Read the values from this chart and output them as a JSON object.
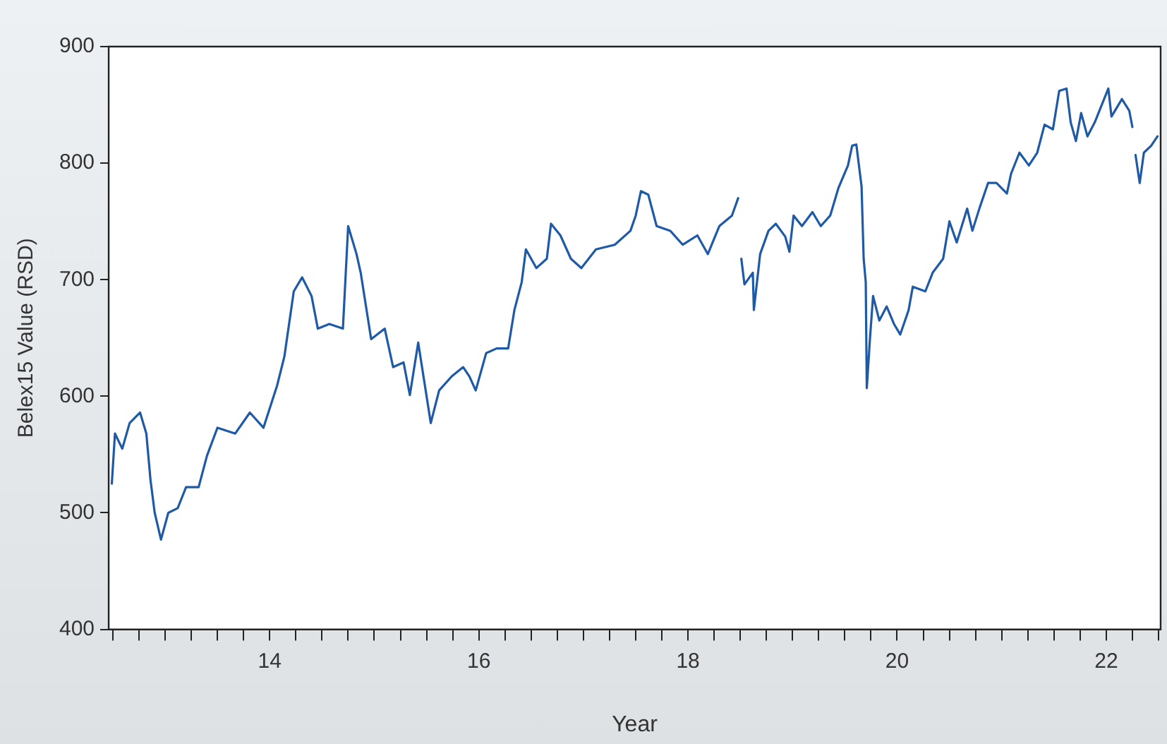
{
  "chart_data": {
    "type": "line",
    "xlabel": "Year",
    "ylabel": "Belex15 Value (RSD)",
    "legend": false,
    "grid": false,
    "marker": "none",
    "line_style": "solid",
    "xlim": [
      2012.46,
      2022.52
    ],
    "ylim": [
      400,
      900
    ],
    "yticks": [
      400,
      500,
      600,
      700,
      800,
      900
    ],
    "xticks": [
      {
        "value": 2012.5,
        "label": null
      },
      {
        "value": 2012.75,
        "label": null
      },
      {
        "value": 2013,
        "label": null
      },
      {
        "value": 2013.25,
        "label": null
      },
      {
        "value": 2013.5,
        "label": null
      },
      {
        "value": 2013.75,
        "label": null
      },
      {
        "value": 2014,
        "label": "14"
      },
      {
        "value": 2014.25,
        "label": null
      },
      {
        "value": 2014.5,
        "label": null
      },
      {
        "value": 2014.75,
        "label": null
      },
      {
        "value": 2015,
        "label": null
      },
      {
        "value": 2015.25,
        "label": null
      },
      {
        "value": 2015.5,
        "label": null
      },
      {
        "value": 2015.75,
        "label": null
      },
      {
        "value": 2016,
        "label": "16"
      },
      {
        "value": 2016.25,
        "label": null
      },
      {
        "value": 2016.5,
        "label": null
      },
      {
        "value": 2016.75,
        "label": null
      },
      {
        "value": 2017,
        "label": null
      },
      {
        "value": 2017.25,
        "label": null
      },
      {
        "value": 2017.5,
        "label": null
      },
      {
        "value": 2017.75,
        "label": null
      },
      {
        "value": 2018,
        "label": "18"
      },
      {
        "value": 2018.25,
        "label": null
      },
      {
        "value": 2018.5,
        "label": null
      },
      {
        "value": 2018.75,
        "label": null
      },
      {
        "value": 2019,
        "label": null
      },
      {
        "value": 2019.25,
        "label": null
      },
      {
        "value": 2019.5,
        "label": null
      },
      {
        "value": 2019.75,
        "label": null
      },
      {
        "value": 2020,
        "label": "20"
      },
      {
        "value": 2020.25,
        "label": null
      },
      {
        "value": 2020.5,
        "label": null
      },
      {
        "value": 2020.75,
        "label": null
      },
      {
        "value": 2021,
        "label": null
      },
      {
        "value": 2021.25,
        "label": null
      },
      {
        "value": 2021.5,
        "label": null
      },
      {
        "value": 2021.75,
        "label": null
      },
      {
        "value": 2022,
        "label": "22"
      },
      {
        "value": 2022.25,
        "label": null
      },
      {
        "value": 2022.5,
        "label": null
      }
    ],
    "series": [
      {
        "color": "#1f5aa6",
        "x": [
          2012.49,
          2012.52,
          2012.59,
          2012.66,
          2012.76,
          2012.82,
          2012.86,
          2012.9,
          2012.96,
          2013.03,
          2013.12,
          2013.2,
          2013.32,
          2013.4,
          2013.5,
          2013.67,
          2013.81,
          2013.94,
          2014.07,
          2014.14,
          2014.23,
          2014.31,
          2014.4,
          2014.46,
          2014.57,
          2014.7,
          2014.75,
          2014.83,
          2014.87,
          2014.97,
          2015.1,
          2015.18,
          2015.28,
          2015.34,
          2015.42,
          2015.54,
          2015.62,
          2015.74,
          2015.85,
          2015.91,
          2015.97,
          2016.07,
          2016.17,
          2016.28,
          2016.34,
          2016.41,
          2016.45,
          2016.55,
          2016.65,
          2016.69,
          2016.78,
          2016.88,
          2016.98,
          2017.12,
          2017.3,
          2017.45,
          2017.5,
          2017.55,
          2017.62,
          2017.7,
          2017.83,
          2017.95,
          2018.09,
          2018.19,
          2018.3,
          2018.42,
          2018.48,
          2018.495,
          2018.51,
          2018.54,
          2018.62,
          2018.63,
          2018.69,
          2018.77,
          2018.84,
          2018.93,
          2018.97,
          2019.01,
          2019.09,
          2019.19,
          2019.27,
          2019.36,
          2019.44,
          2019.53,
          2019.57,
          2019.61,
          2019.66,
          2019.68,
          2019.7,
          2019.71,
          2019.74,
          2019.77,
          2019.83,
          2019.9,
          2019.97,
          2020.03,
          2020.11,
          2020.15,
          2020.27,
          2020.34,
          2020.44,
          2020.5,
          2020.57,
          2020.67,
          2020.72,
          2020.79,
          2020.87,
          2020.95,
          2021.05,
          2021.09,
          2021.17,
          2021.26,
          2021.34,
          2021.41,
          2021.49,
          2021.55,
          2021.62,
          2021.66,
          2021.71,
          2021.76,
          2021.82,
          2021.89,
          2022.02,
          2022.05,
          2022.15,
          2022.22,
          2022.25,
          2022.26,
          2022.28,
          2022.32,
          2022.36,
          2022.43,
          2022.49
        ],
        "values": [
          525,
          568,
          555,
          577,
          586,
          568,
          528,
          500,
          477,
          500,
          504,
          522,
          522,
          549,
          573,
          568,
          586,
          573,
          609,
          634,
          690,
          702,
          686,
          658,
          662,
          658,
          746,
          722,
          706,
          649,
          658,
          625,
          629,
          601,
          646,
          577,
          605,
          617,
          625,
          617,
          605,
          637,
          641,
          641,
          674,
          698,
          726,
          710,
          718,
          748,
          738,
          718,
          710,
          726,
          730,
          742,
          755,
          776,
          773,
          746,
          742,
          730,
          738,
          722,
          746,
          755,
          770,
          null,
          718,
          696,
          706,
          674,
          722,
          742,
          748,
          737,
          724,
          755,
          746,
          758,
          746,
          755,
          779,
          798,
          815,
          816,
          780,
          718,
          698,
          607,
          649,
          686,
          665,
          677,
          662,
          653,
          674,
          694,
          690,
          706,
          718,
          750,
          732,
          761,
          742,
          762,
          783,
          783,
          774,
          791,
          809,
          798,
          809,
          833,
          829,
          862,
          864,
          835,
          819,
          843,
          823,
          835,
          864,
          840,
          855,
          845,
          831,
          null,
          807,
          783,
          809,
          815,
          823
        ]
      }
    ]
  }
}
